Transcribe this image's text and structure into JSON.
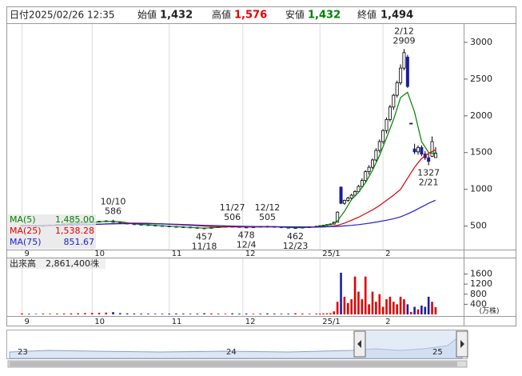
{
  "chart_data": {
    "type": "candlestick",
    "info": {
      "date_label": "日付",
      "date": "2025/02/26 12:35",
      "open_label": "始値",
      "open": "1,432",
      "high_label": "高値",
      "high": "1,576",
      "low_label": "安値",
      "low": "1,432",
      "close_label": "終値",
      "close": "1,494"
    },
    "x": [
      4,
      6,
      8,
      10,
      12,
      14,
      16,
      18,
      20,
      22,
      24,
      26,
      28,
      30,
      32,
      34,
      36,
      38,
      40,
      42,
      44,
      46,
      48,
      50,
      52,
      54,
      56,
      58,
      60,
      62,
      64,
      66,
      68,
      70,
      72,
      74,
      76,
      78,
      80,
      82,
      84,
      86,
      88,
      89,
      90,
      91,
      92,
      93,
      94,
      95,
      96,
      97,
      98,
      99,
      100,
      101,
      102,
      103,
      104,
      105,
      106,
      107,
      108,
      109,
      110,
      111,
      112,
      113,
      114,
      115,
      116,
      117,
      118,
      119,
      120,
      121,
      122
    ],
    "open": [
      505,
      510,
      506,
      500,
      508,
      515,
      522,
      530,
      538,
      542,
      550,
      555,
      565,
      570,
      552,
      540,
      530,
      524,
      518,
      512,
      506,
      500,
      494,
      490,
      486,
      480,
      474,
      470,
      482,
      490,
      496,
      492,
      486,
      484,
      490,
      496,
      494,
      488,
      482,
      474,
      478,
      484,
      490,
      500,
      505,
      512,
      520,
      528,
      552,
      1030,
      810,
      850,
      880,
      920,
      970,
      1040,
      1120,
      1240,
      1300,
      1400,
      1530,
      1650,
      1800,
      1950,
      2120,
      2280,
      2450,
      2650,
      2800,
      1900,
      1550,
      1510,
      1570,
      1480,
      1430,
      1450,
      1432
    ],
    "high": [
      515,
      520,
      514,
      512,
      520,
      528,
      535,
      545,
      550,
      558,
      565,
      572,
      580,
      586,
      560,
      548,
      538,
      532,
      526,
      520,
      514,
      508,
      502,
      498,
      494,
      488,
      480,
      485,
      494,
      500,
      506,
      498,
      490,
      494,
      500,
      505,
      498,
      492,
      486,
      480,
      488,
      494,
      502,
      512,
      518,
      525,
      535,
      560,
      700,
      1040,
      860,
      900,
      940,
      990,
      1060,
      1150,
      1260,
      1330,
      1420,
      1560,
      1680,
      1820,
      1980,
      2150,
      2300,
      2480,
      2700,
      2909,
      2830,
      1900,
      1620,
      1600,
      1600,
      1520,
      1500,
      1720,
      1576
    ],
    "low": [
      498,
      502,
      496,
      494,
      503,
      510,
      515,
      522,
      530,
      535,
      540,
      548,
      555,
      548,
      535,
      525,
      518,
      512,
      508,
      502,
      496,
      488,
      484,
      478,
      474,
      468,
      457,
      466,
      478,
      485,
      488,
      482,
      478,
      480,
      486,
      490,
      484,
      478,
      470,
      462,
      474,
      480,
      486,
      492,
      498,
      505,
      510,
      520,
      550,
      800,
      790,
      830,
      860,
      900,
      950,
      1020,
      1100,
      1200,
      1280,
      1380,
      1500,
      1620,
      1760,
      1920,
      2080,
      2250,
      2420,
      2620,
      2380,
      1900,
      1480,
      1470,
      1450,
      1400,
      1327,
      1440,
      1432
    ],
    "close": [
      510,
      506,
      500,
      508,
      515,
      522,
      530,
      538,
      542,
      550,
      555,
      565,
      570,
      552,
      540,
      530,
      524,
      518,
      512,
      506,
      500,
      494,
      490,
      486,
      480,
      474,
      470,
      482,
      490,
      496,
      492,
      486,
      484,
      490,
      496,
      494,
      488,
      482,
      474,
      478,
      484,
      490,
      498,
      505,
      512,
      520,
      528,
      552,
      690,
      810,
      850,
      880,
      920,
      970,
      1040,
      1120,
      1240,
      1300,
      1400,
      1530,
      1650,
      1800,
      1950,
      2120,
      2280,
      2450,
      2650,
      2860,
      2400,
      1900,
      1510,
      1570,
      1480,
      1430,
      1380,
      1650,
      1494
    ],
    "up_color": "#ffffff",
    "down_color": "#1c1ca0",
    "xlim": [
      0,
      130
    ],
    "xticks": [
      {
        "value": 4,
        "label": "9"
      },
      {
        "value": 24,
        "label": "10"
      },
      {
        "value": 46,
        "label": "11"
      },
      {
        "value": 67,
        "label": "12"
      },
      {
        "value": 89,
        "label": "25/1"
      },
      {
        "value": 107,
        "label": "2"
      }
    ],
    "ylim": [
      180,
      3250
    ],
    "yticks": [
      500,
      1000,
      1500,
      2000,
      2500,
      3000
    ],
    "annotations": [
      {
        "x": 30,
        "label": "10/10",
        "value": 586
      },
      {
        "x": 56,
        "label": "11/18",
        "value": 457
      },
      {
        "x": 64,
        "label": "11/27",
        "value": 506
      },
      {
        "x": 68,
        "label": "12/4",
        "value": 478
      },
      {
        "x": 74,
        "label": "12/12",
        "value": 505
      },
      {
        "x": 82,
        "label": "12/23",
        "value": 462
      },
      {
        "x": 113,
        "label": "2/12",
        "value": 2909
      },
      {
        "x": 120,
        "label": "2/21",
        "value": 1327
      }
    ],
    "ma": [
      {
        "name": "MA(5)",
        "color": "#008000",
        "legend_value": "1,485.00",
        "x": [
          4,
          8,
          12,
          16,
          20,
          24,
          28,
          32,
          36,
          40,
          44,
          48,
          52,
          56,
          60,
          64,
          68,
          72,
          76,
          80,
          84,
          88,
          90,
          92,
          94,
          96,
          98,
          100,
          102,
          104,
          106,
          108,
          110,
          112,
          114,
          116,
          118,
          120,
          122
        ],
        "values": [
          510,
          505,
          510,
          525,
          540,
          550,
          565,
          560,
          530,
          515,
          503,
          492,
          482,
          472,
          482,
          494,
          488,
          490,
          492,
          480,
          478,
          490,
          505,
          520,
          570,
          700,
          860,
          960,
          1090,
          1260,
          1460,
          1700,
          1950,
          2250,
          2320,
          2050,
          1650,
          1500,
          1485
        ]
      },
      {
        "name": "MA(25)",
        "color": "#e00000",
        "legend_value": "1,538.28",
        "x": [
          4,
          8,
          12,
          16,
          20,
          24,
          28,
          32,
          36,
          40,
          44,
          48,
          52,
          56,
          60,
          64,
          68,
          72,
          76,
          80,
          84,
          88,
          90,
          92,
          94,
          96,
          98,
          100,
          102,
          104,
          106,
          108,
          110,
          112,
          114,
          116,
          118,
          120,
          122
        ],
        "values": [
          505,
          506,
          507,
          510,
          515,
          522,
          530,
          538,
          540,
          538,
          530,
          520,
          510,
          500,
          492,
          488,
          488,
          488,
          489,
          488,
          486,
          485,
          490,
          495,
          510,
          540,
          580,
          620,
          670,
          720,
          780,
          850,
          920,
          1000,
          1150,
          1300,
          1420,
          1490,
          1538.28
        ]
      },
      {
        "name": "MA(75)",
        "color": "#2020d0",
        "legend_value": "851.67",
        "x": [
          4,
          8,
          12,
          16,
          20,
          24,
          28,
          32,
          36,
          40,
          44,
          48,
          52,
          56,
          60,
          64,
          68,
          72,
          76,
          80,
          84,
          88,
          90,
          92,
          94,
          96,
          98,
          100,
          102,
          104,
          106,
          108,
          110,
          112,
          114,
          116,
          118,
          120,
          122
        ],
        "values": [
          500,
          505,
          510,
          515,
          518,
          522,
          528,
          532,
          534,
          533,
          530,
          525,
          518,
          510,
          505,
          500,
          496,
          494,
          492,
          490,
          489,
          488,
          489,
          492,
          496,
          502,
          510,
          520,
          532,
          546,
          562,
          580,
          600,
          625,
          665,
          710,
          760,
          810,
          851.67
        ]
      }
    ],
    "volume": {
      "label": "出来高",
      "total": "2,861,400株",
      "unit": "(万株)",
      "up_color": "#e00000",
      "down_color": "#1c1ca0",
      "ylim": [
        0,
        2250
      ],
      "yticks": [
        400,
        800,
        1200,
        1600
      ],
      "values": [
        40,
        25,
        20,
        30,
        25,
        30,
        35,
        40,
        45,
        50,
        55,
        60,
        70,
        90,
        50,
        40,
        35,
        30,
        30,
        25,
        25,
        30,
        35,
        30,
        25,
        30,
        45,
        35,
        30,
        25,
        40,
        30,
        35,
        25,
        30,
        40,
        30,
        25,
        30,
        45,
        30,
        25,
        30,
        30,
        35,
        40,
        45,
        120,
        500,
        1650,
        700,
        450,
        600,
        1500,
        900,
        600,
        1500,
        400,
        900,
        500,
        800,
        300,
        600,
        700,
        500,
        400,
        700,
        600,
        400,
        100,
        300,
        200,
        350,
        300,
        700,
        500,
        286.14
      ]
    },
    "navigator": {
      "labels": [
        "23",
        "24",
        "25"
      ]
    }
  }
}
